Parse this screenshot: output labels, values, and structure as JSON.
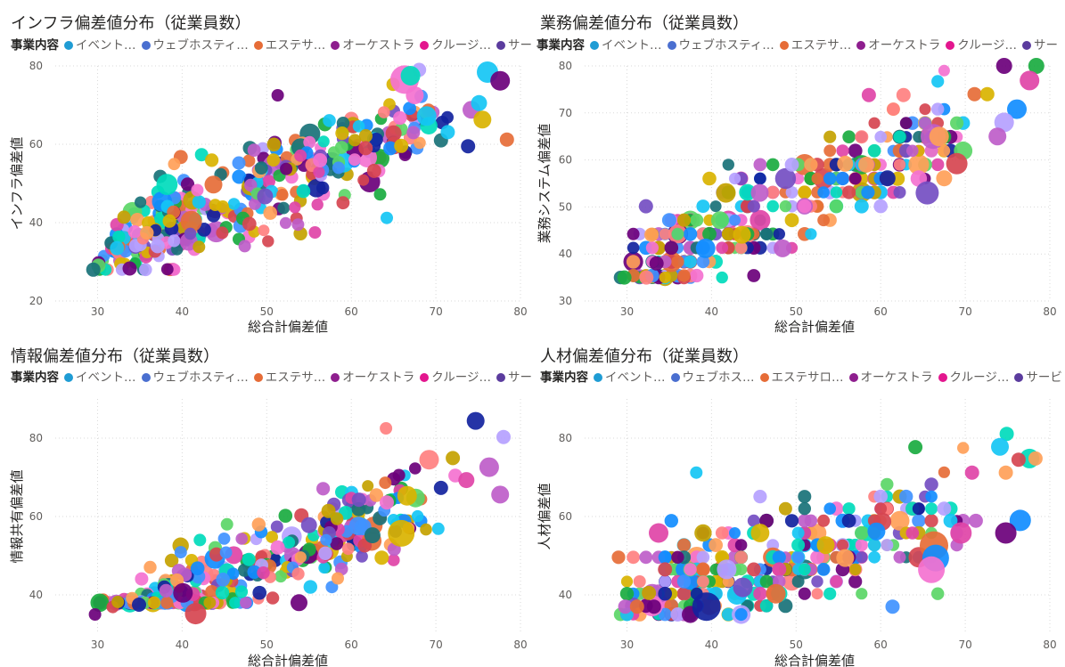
{
  "legend_title": "事業内容",
  "series_colors": [
    "#118DFF",
    "#12239E",
    "#E66C37",
    "#6B007B",
    "#E044A7",
    "#744EC2",
    "#D9B300",
    "#D64550",
    "#197278",
    "#1AAB40",
    "#15C6F4",
    "#4092FF",
    "#FFA058",
    "#BE5DC9",
    "#F472D0",
    "#B5A1FF",
    "#C4A200",
    "#FF8080",
    "#00DBBC",
    "#5BD667"
  ],
  "chart_data": [
    {
      "type": "scatter",
      "title": "インフラ偏差値分布（従業員数）",
      "xlabel": "総合計偏差値",
      "ylabel": "インフラ偏差値",
      "xlim": [
        25,
        80
      ],
      "ylim": [
        20,
        80
      ],
      "xticks": [
        30,
        40,
        50,
        60,
        70,
        80
      ],
      "yticks": [
        20,
        40,
        60,
        80
      ],
      "grid": true,
      "legend_position": "top",
      "legend": [
        {
          "label": "イベント…",
          "color": "#1F9CD4"
        },
        {
          "label": "ウェブホスティ…",
          "color": "#4A6FD0"
        },
        {
          "label": "エステサ…",
          "color": "#E66C37"
        },
        {
          "label": "オーケストラ",
          "color": "#8E1E8E"
        },
        {
          "label": "クルージ…",
          "color": "#E3168E"
        },
        {
          "label": "サービ",
          "color": "#5B3C9E"
        }
      ],
      "trend": {
        "slope": 0.9,
        "intercept": 5,
        "noise": 5.5
      },
      "points": [
        [
          76.1,
          78.4,
          12
        ],
        [
          77.6,
          76.2,
          11
        ],
        [
          66.3,
          76.5,
          16
        ],
        [
          67.0,
          77.5,
          11
        ],
        [
          67.5,
          72.5,
          10
        ],
        [
          68.9,
          67.2,
          11
        ],
        [
          74.2,
          68.8,
          10
        ],
        [
          75.1,
          70.5,
          9
        ],
        [
          78.4,
          61.2,
          8
        ],
        [
          75.5,
          66.3,
          10
        ],
        [
          65.0,
          62.8,
          9
        ],
        [
          64.2,
          41.2,
          7
        ],
        [
          55.7,
          37.5,
          7
        ],
        [
          53.7,
          39.5,
          7
        ],
        [
          51.3,
          72.5,
          7
        ],
        [
          30.1,
          29.0,
          8
        ],
        [
          29.5,
          28.0,
          8
        ],
        [
          32.3,
          33.5,
          8
        ],
        [
          33.8,
          28.3,
          8
        ],
        [
          37.1,
          34.0,
          8
        ],
        [
          42.0,
          33.8,
          7
        ],
        [
          46.7,
          35.8,
          7
        ],
        [
          47.4,
          34.0,
          7
        ],
        [
          41.8,
          48.3,
          7
        ],
        [
          43.7,
          49.7,
          10
        ],
        [
          44.8,
          44.1,
          7
        ],
        [
          48.6,
          44.8,
          7
        ],
        [
          48.9,
          47.4,
          7
        ],
        [
          49.8,
          46.7,
          9
        ],
        [
          51.5,
          52.0,
          7
        ],
        [
          52.3,
          53.7,
          7
        ],
        [
          54.0,
          57.1,
          7
        ],
        [
          56.3,
          55.9,
          8
        ],
        [
          58.5,
          54.0,
          7
        ],
        [
          61.7,
          59.0,
          8
        ],
        [
          60.4,
          56.1,
          7
        ],
        [
          62.7,
          53.2,
          8
        ],
        [
          63.4,
          47.2,
          7
        ],
        [
          65.9,
          59.6,
          8
        ],
        [
          70.6,
          61.0,
          8
        ],
        [
          71.4,
          63.1,
          8
        ],
        [
          73.8,
          59.5,
          8
        ]
      ],
      "n_random": 340
    },
    {
      "type": "scatter",
      "title": "業務偏差値分布（従業員数）",
      "xlabel": "総合計偏差値",
      "ylabel": "業務システム偏差値",
      "xlim": [
        25,
        80
      ],
      "ylim": [
        30,
        80
      ],
      "xticks": [
        30,
        40,
        50,
        60,
        70,
        80
      ],
      "yticks": [
        30,
        40,
        50,
        60,
        70,
        80
      ],
      "grid": true,
      "legend_position": "top",
      "legend": [
        {
          "label": "イベント…",
          "color": "#1F9CD4"
        },
        {
          "label": "ウェブホスティ…",
          "color": "#4A6FD0"
        },
        {
          "label": "エステサ…",
          "color": "#E66C37"
        },
        {
          "label": "オーケストラ",
          "color": "#8E1E8E"
        },
        {
          "label": "クルージ…",
          "color": "#E3168E"
        },
        {
          "label": "サー",
          "color": "#5B3C9E"
        }
      ],
      "trend": {
        "slope": 0.8,
        "intercept": 12,
        "noise": 5.0
      },
      "points": [
        [
          74.6,
          80.0,
          9
        ],
        [
          78.4,
          80.0,
          9
        ],
        [
          77.6,
          76.9,
          11
        ],
        [
          76.1,
          70.8,
          11
        ],
        [
          74.6,
          68.0,
          11
        ],
        [
          73.8,
          65.0,
          10
        ],
        [
          69.0,
          59.2,
          12
        ],
        [
          66.2,
          65.0,
          14
        ],
        [
          66.9,
          65.0,
          11
        ],
        [
          65.5,
          53.0,
          13
        ],
        [
          62.0,
          56.0,
          8
        ],
        [
          58.6,
          73.8,
          8
        ],
        [
          62.7,
          73.8,
          8
        ],
        [
          41.7,
          53.0,
          11
        ],
        [
          39.3,
          41.2,
          11
        ],
        [
          41.0,
          47.2,
          10
        ],
        [
          43.6,
          44.1,
          10
        ],
        [
          45.7,
          53.0,
          10
        ],
        [
          48.4,
          41.2,
          10
        ],
        [
          55.8,
          59.2,
          9
        ],
        [
          58.3,
          59.0,
          9
        ],
        [
          60.8,
          56.1,
          9
        ],
        [
          32.3,
          35.0,
          8
        ],
        [
          29.7,
          35.0,
          8
        ],
        [
          33.5,
          38.0,
          8
        ],
        [
          32.9,
          44.1,
          8
        ],
        [
          35.0,
          47.2,
          8
        ],
        [
          67.5,
          56.1,
          9
        ],
        [
          71.1,
          74.0,
          8
        ],
        [
          72.6,
          74.0,
          8
        ]
      ],
      "n_random": 320,
      "y_quant": 2.95,
      "x_quant": 0.75
    },
    {
      "type": "scatter",
      "title": "情報偏差値分布（従業員数）",
      "xlabel": "総合計偏差値",
      "ylabel": "情報共有偏差値",
      "xlim": [
        25,
        80
      ],
      "ylim": [
        30,
        90
      ],
      "xticks": [
        30,
        40,
        50,
        60,
        70,
        80
      ],
      "yticks": [
        40,
        60,
        80
      ],
      "grid": true,
      "legend_position": "top",
      "legend": [
        {
          "label": "イベント…",
          "color": "#1F9CD4"
        },
        {
          "label": "ウェブホスティ…",
          "color": "#4A6FD0"
        },
        {
          "label": "エステサ…",
          "color": "#E66C37"
        },
        {
          "label": "オーケストラ",
          "color": "#8E1E8E"
        },
        {
          "label": "クルージ…",
          "color": "#E3168E"
        },
        {
          "label": "サー",
          "color": "#5B3C9E"
        }
      ],
      "trend": {
        "slope": 0.86,
        "intercept": 5,
        "noise": 5.2
      },
      "points": [
        [
          74.7,
          84.4,
          10
        ],
        [
          78.0,
          80.3,
          8
        ],
        [
          64.1,
          82.5,
          7
        ],
        [
          69.2,
          74.5,
          11
        ],
        [
          76.3,
          72.6,
          11
        ],
        [
          77.6,
          65.6,
          10
        ],
        [
          73.6,
          69.3,
          9
        ],
        [
          65.9,
          55.7,
          15
        ],
        [
          66.6,
          65.3,
          11
        ],
        [
          64.2,
          63.6,
          8
        ],
        [
          41.6,
          35.2,
          12
        ],
        [
          40.1,
          40.5,
          11
        ],
        [
          29.7,
          35.0,
          7
        ],
        [
          31.8,
          36.9,
          7
        ],
        [
          32.4,
          38.2,
          7
        ],
        [
          34.9,
          37.5,
          8
        ],
        [
          42.1,
          54.0,
          7
        ],
        [
          45.3,
          58.0,
          7
        ],
        [
          54.1,
          60.3,
          8
        ],
        [
          55.0,
          57.8,
          9
        ],
        [
          57.3,
          61.4,
          8
        ],
        [
          62.5,
          55.2,
          9
        ],
        [
          63.6,
          49.5,
          8
        ],
        [
          57.7,
          42.0,
          7
        ],
        [
          58.4,
          44.2,
          7
        ],
        [
          60.9,
          64.3,
          8
        ],
        [
          72.0,
          74.9,
          8
        ],
        [
          70.6,
          67.3,
          8
        ]
      ],
      "n_random": 330
    },
    {
      "type": "scatter",
      "title": "人材偏差値分布（従業員数）",
      "xlabel": "総合計偏差値",
      "ylabel": "人材偏差値",
      "xlim": [
        25,
        80
      ],
      "ylim": [
        30,
        90
      ],
      "xticks": [
        30,
        40,
        50,
        60,
        70,
        80
      ],
      "yticks": [
        40,
        60,
        80
      ],
      "grid": true,
      "legend_position": "top",
      "legend": [
        {
          "label": "イベント…",
          "color": "#1F9CD4"
        },
        {
          "label": "ウェブホス…",
          "color": "#4A6FD0"
        },
        {
          "label": "エステサロ…",
          "color": "#E66C37"
        },
        {
          "label": "オーケストラ",
          "color": "#8E1E8E"
        },
        {
          "label": "クルージ…",
          "color": "#E3168E"
        },
        {
          "label": "サービ",
          "color": "#5B3C9E"
        }
      ],
      "trend": {
        "slope": 0.55,
        "intercept": 22,
        "noise": 6.5
      },
      "points": [
        [
          74.9,
          81.1,
          8
        ],
        [
          74.1,
          77.8,
          10
        ],
        [
          77.6,
          74.8,
          11
        ],
        [
          78.3,
          74.8,
          8
        ],
        [
          76.3,
          74.5,
          8
        ],
        [
          74.8,
          71.2,
          8
        ],
        [
          76.5,
          59.0,
          12
        ],
        [
          69.5,
          55.8,
          12
        ],
        [
          74.8,
          55.8,
          12
        ],
        [
          66.3,
          52.6,
          16
        ],
        [
          66.5,
          49.4,
          15
        ],
        [
          66.0,
          46.4,
          15
        ],
        [
          39.4,
          37.0,
          16
        ],
        [
          41.8,
          46.5,
          11
        ],
        [
          43.0,
          40.0,
          11
        ],
        [
          43.7,
          41.9,
          11
        ],
        [
          47.6,
          40.3,
          11
        ],
        [
          53.5,
          52.7,
          10
        ],
        [
          55.8,
          49.4,
          10
        ],
        [
          60.2,
          58.7,
          10
        ],
        [
          59.5,
          56.2,
          10
        ],
        [
          64.1,
          77.7,
          8
        ],
        [
          32.6,
          40.5,
          8
        ],
        [
          29.8,
          37.0,
          8
        ],
        [
          31.2,
          37.0,
          8
        ],
        [
          33.2,
          37.0,
          8
        ],
        [
          34.5,
          46.5,
          8
        ],
        [
          38.2,
          71.2,
          7
        ],
        [
          61.4,
          37.0,
          8
        ],
        [
          70.8,
          71.2,
          8
        ]
      ],
      "n_random": 320,
      "y_quant": 3.1,
      "x_quant": 0.75
    }
  ]
}
